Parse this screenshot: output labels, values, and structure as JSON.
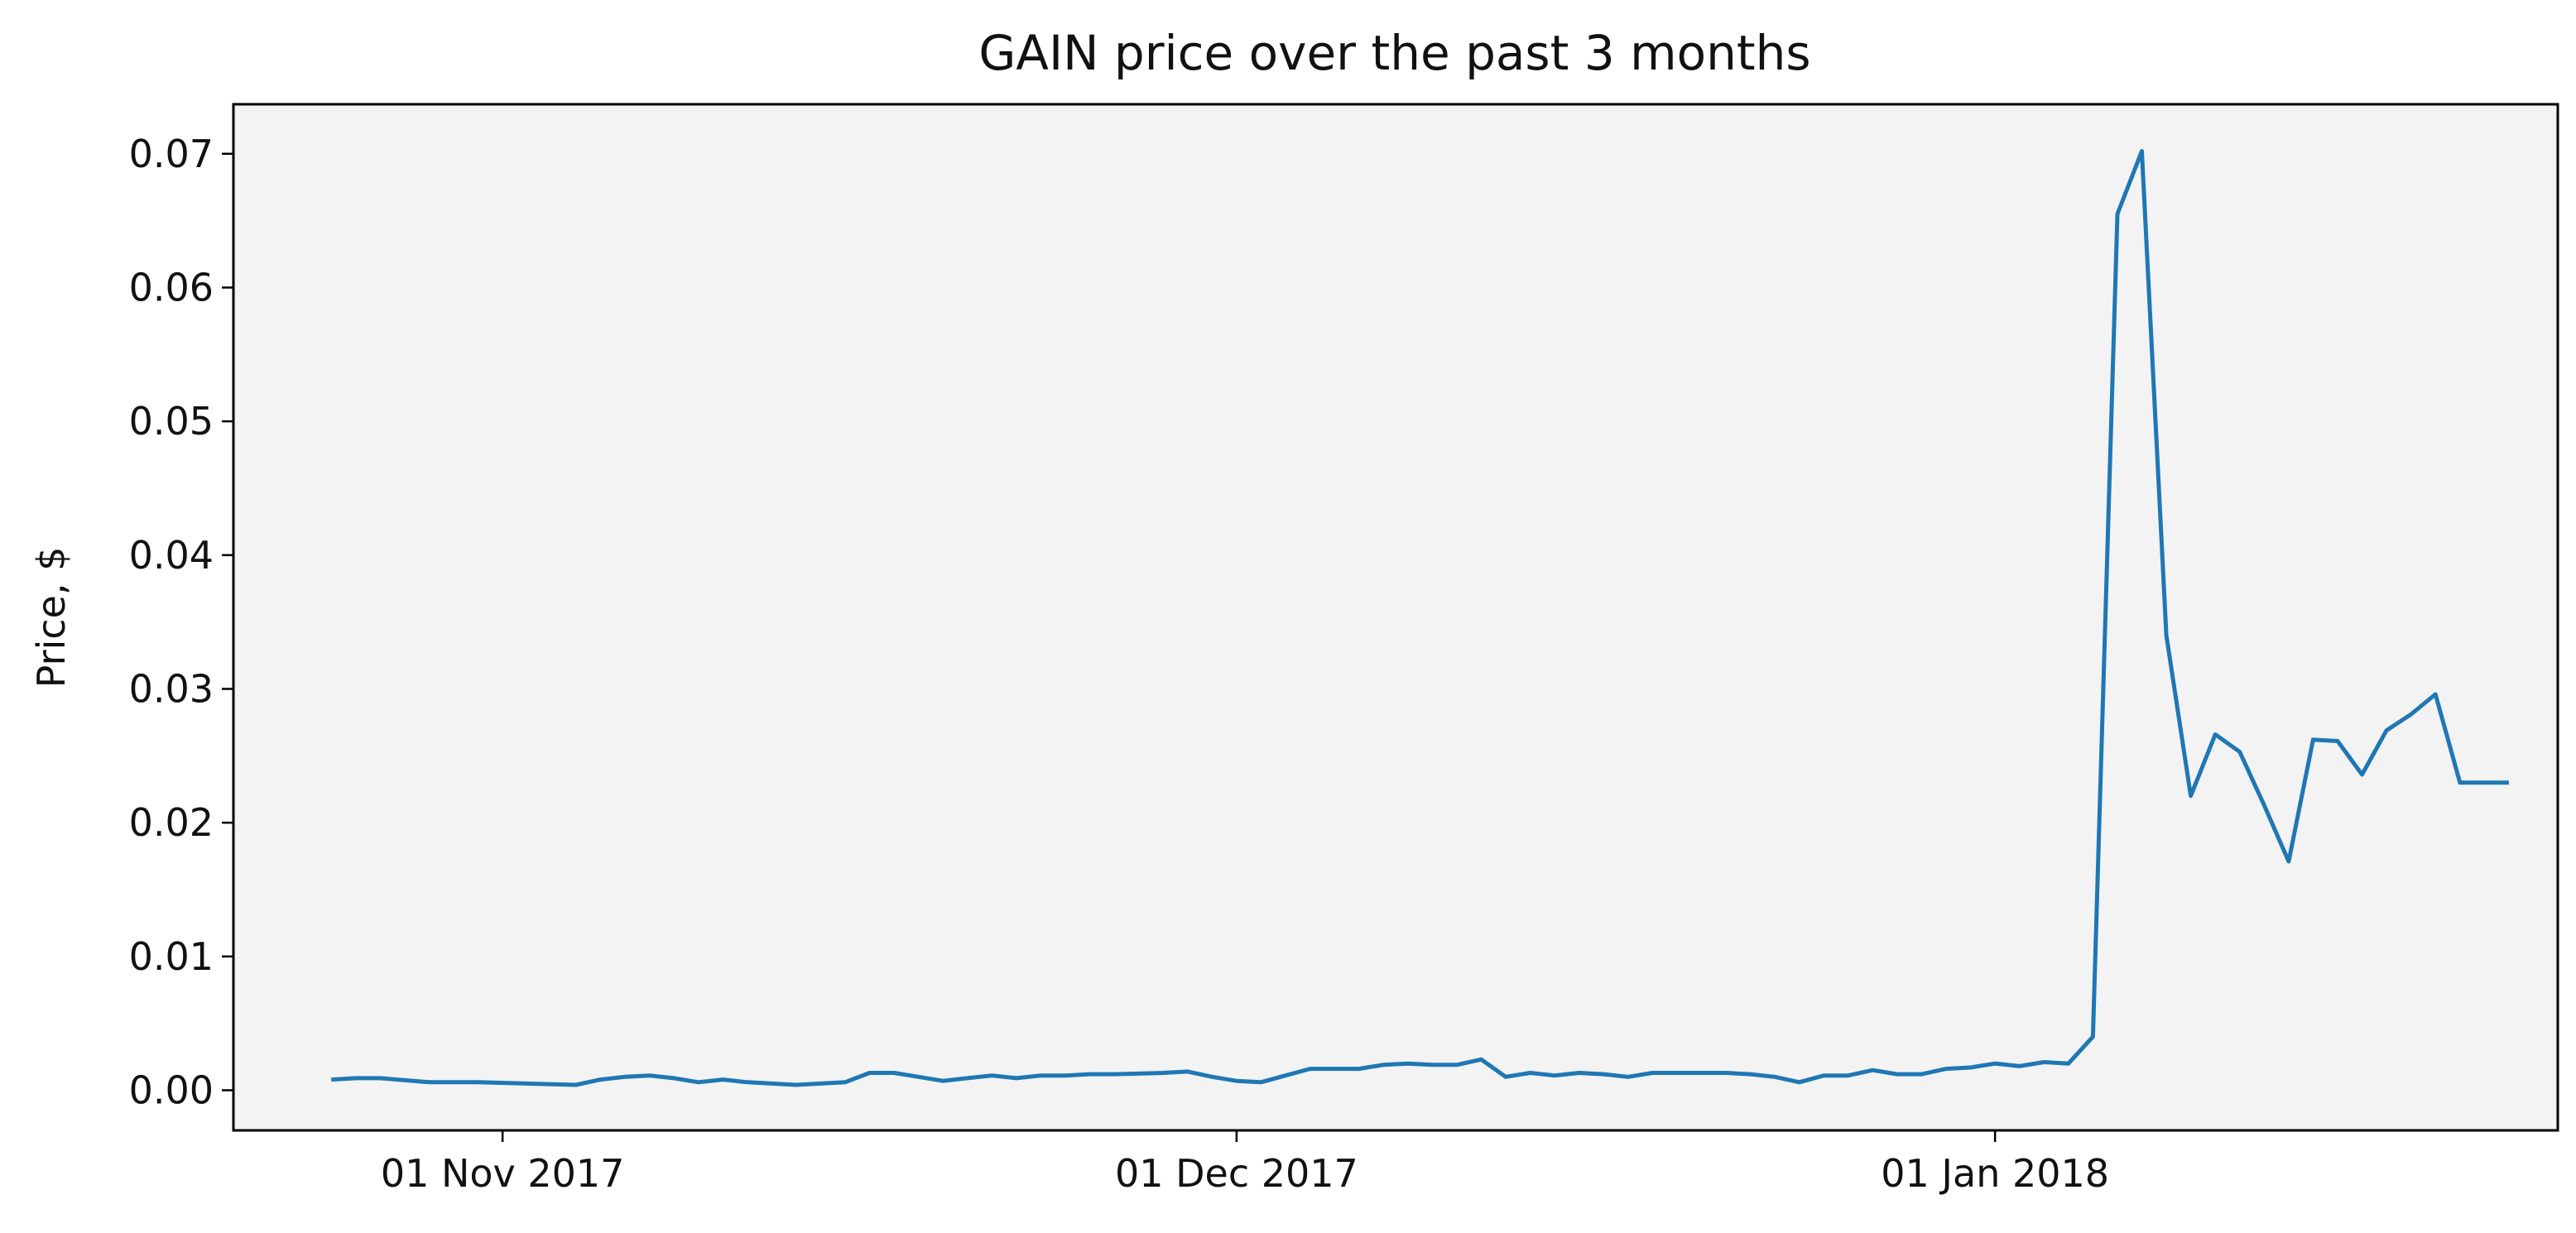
{
  "chart_data": {
    "type": "line",
    "title": "GAIN price over the past 3 months",
    "xlabel": "",
    "ylabel": "Price, $",
    "x_ticks": [
      {
        "date": "2017-11-01",
        "label": "01 Nov 2017"
      },
      {
        "date": "2017-12-01",
        "label": "01 Dec 2017"
      },
      {
        "date": "2018-01-01",
        "label": "01 Jan 2018"
      }
    ],
    "y_ticks": [
      0.0,
      0.01,
      0.02,
      0.03,
      0.04,
      0.05,
      0.06,
      0.07
    ],
    "y_tick_labels": [
      "0.00",
      "0.01",
      "0.02",
      "0.03",
      "0.04",
      "0.05",
      "0.06",
      "0.07"
    ],
    "xlim": [
      "2017-10-21",
      "2018-01-24"
    ],
    "ylim": [
      -0.003,
      0.0737
    ],
    "grid": false,
    "background_color": "#f3f3f3",
    "series": [
      {
        "color": "#1f77b4",
        "x": [
          "2017-10-25",
          "2017-10-26",
          "2017-10-27",
          "2017-10-29",
          "2017-10-30",
          "2017-10-31",
          "2017-11-04",
          "2017-11-05",
          "2017-11-06",
          "2017-11-07",
          "2017-11-08",
          "2017-11-09",
          "2017-11-10",
          "2017-11-11",
          "2017-11-12",
          "2017-11-13",
          "2017-11-14",
          "2017-11-15",
          "2017-11-16",
          "2017-11-17",
          "2017-11-18",
          "2017-11-19",
          "2017-11-20",
          "2017-11-21",
          "2017-11-22",
          "2017-11-23",
          "2017-11-24",
          "2017-11-25",
          "2017-11-26",
          "2017-11-28",
          "2017-11-29",
          "2017-11-30",
          "2017-12-01",
          "2017-12-02",
          "2017-12-03",
          "2017-12-04",
          "2017-12-05",
          "2017-12-06",
          "2017-12-07",
          "2017-12-08",
          "2017-12-09",
          "2017-12-10",
          "2017-12-11",
          "2017-12-12",
          "2017-12-13",
          "2017-12-14",
          "2017-12-15",
          "2017-12-16",
          "2017-12-17",
          "2017-12-18",
          "2017-12-19",
          "2017-12-20",
          "2017-12-21",
          "2017-12-22",
          "2017-12-23",
          "2017-12-24",
          "2017-12-25",
          "2017-12-26",
          "2017-12-27",
          "2017-12-28",
          "2017-12-29",
          "2017-12-30",
          "2017-12-31",
          "2018-01-01",
          "2018-01-02",
          "2018-01-03",
          "2018-01-04",
          "2018-01-05",
          "2018-01-06",
          "2018-01-07",
          "2018-01-08",
          "2018-01-09",
          "2018-01-10",
          "2018-01-11",
          "2018-01-12",
          "2018-01-13",
          "2018-01-14",
          "2018-01-15",
          "2018-01-16",
          "2018-01-17",
          "2018-01-18",
          "2018-01-19",
          "2018-01-20",
          "2018-01-21",
          "2018-01-22"
        ],
        "y": [
          0.0008,
          0.0009,
          0.0009,
          0.0006,
          0.0006,
          0.0006,
          0.0004,
          0.0008,
          0.001,
          0.0011,
          0.0009,
          0.0006,
          0.0008,
          0.0006,
          0.0005,
          0.0004,
          0.0005,
          0.0006,
          0.0013,
          0.0013,
          0.001,
          0.0007,
          0.0009,
          0.0011,
          0.0009,
          0.0011,
          0.0011,
          0.0012,
          0.0012,
          0.0013,
          0.0014,
          0.001,
          0.0007,
          0.0006,
          0.0011,
          0.0016,
          0.0016,
          0.0016,
          0.0019,
          0.002,
          0.0019,
          0.0019,
          0.0023,
          0.001,
          0.0013,
          0.0011,
          0.0013,
          0.0012,
          0.001,
          0.0013,
          0.0013,
          0.0013,
          0.0013,
          0.0012,
          0.001,
          0.0006,
          0.0011,
          0.0011,
          0.0015,
          0.0012,
          0.0012,
          0.0016,
          0.0017,
          0.002,
          0.0018,
          0.0021,
          0.002,
          0.004,
          0.0655,
          0.0702,
          0.034,
          0.022,
          0.0266,
          0.0253,
          0.0213,
          0.0171,
          0.0262,
          0.0261,
          0.0236,
          0.0269,
          0.0281,
          0.0296,
          0.023,
          0.023,
          0.023
        ]
      }
    ]
  }
}
